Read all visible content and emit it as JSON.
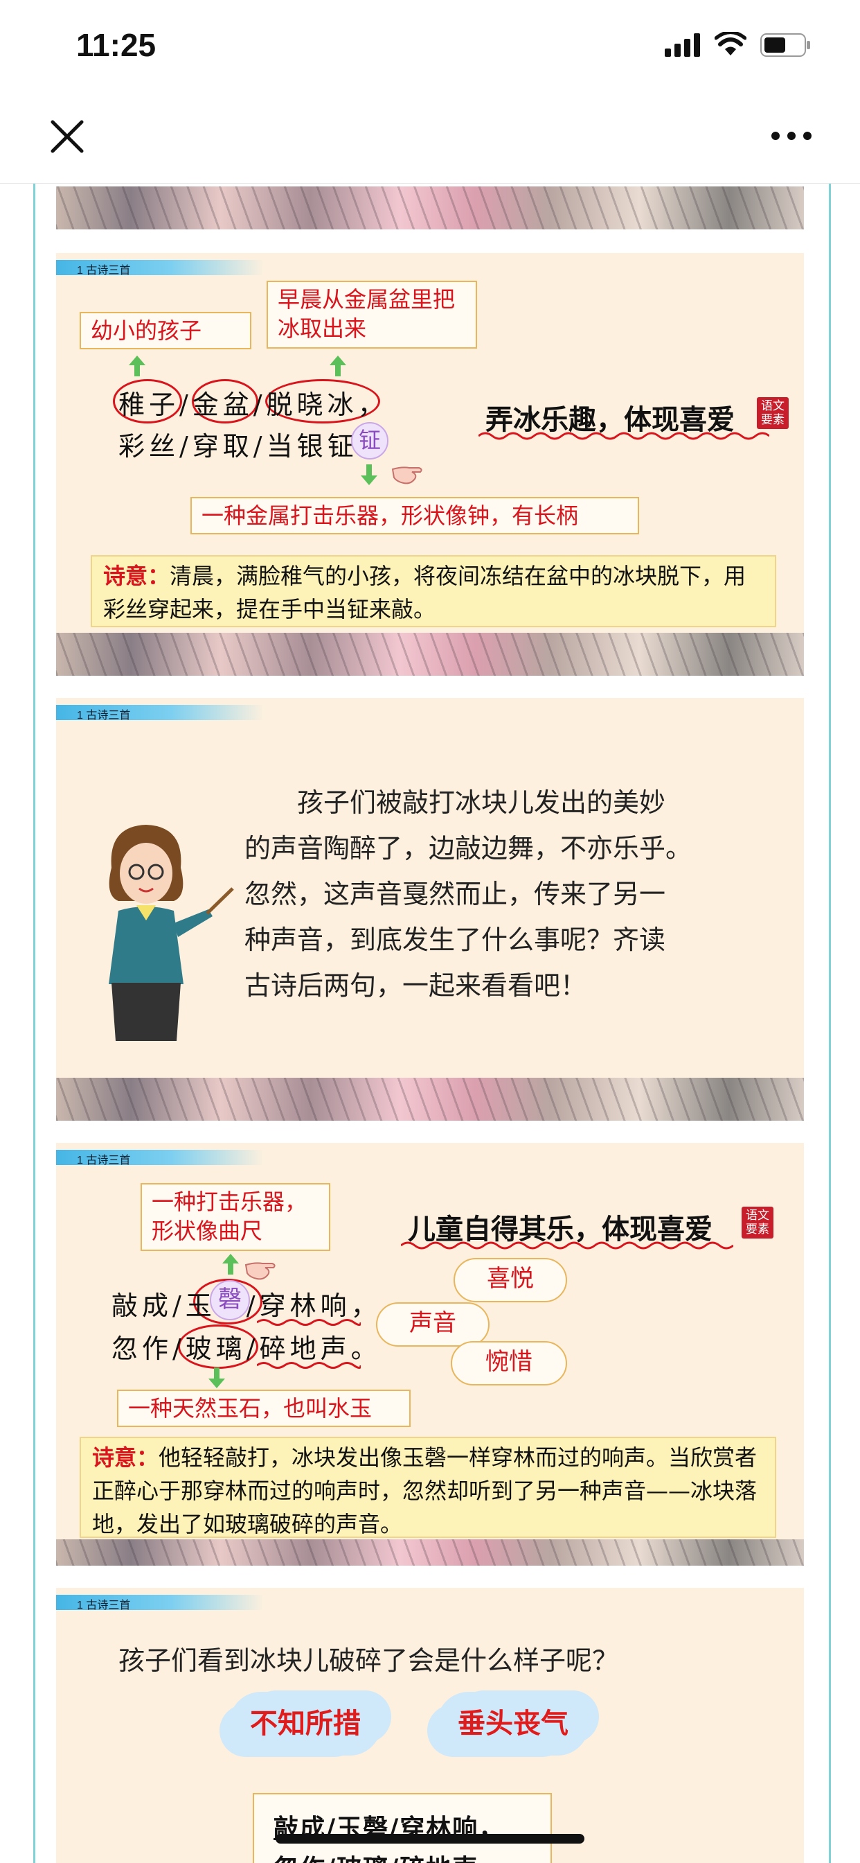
{
  "status": {
    "time": "11:25"
  },
  "slides": [
    {
      "tag": "1 古诗三首",
      "note_left": "幼小的孩子",
      "note_right": "早晨从金属盆里把冰取出来",
      "poem_line1": "稚子/金盆/脱晓冰，",
      "poem_line2": "彩丝/穿取/当银钲。",
      "circled_char": "钲",
      "heading": "弄冰乐趣，体现喜爱",
      "seal": "语文要素",
      "note_bottom": "一种金属打击乐器，形状像钟，有长柄",
      "meaning_label": "诗意：",
      "meaning_text": "清晨，满脸稚气的小孩，将夜间冻结在盆中的冰块脱下，用彩丝穿起来，提在手中当钲来敲。"
    },
    {
      "tag": "1 古诗三首",
      "paragraph": "孩子们被敲打冰块儿发出的美妙的声音陶醉了，边敲边舞，不亦乐乎。忽然，这声音戛然而止，传来了另一种声音，到底发生了什么事呢？齐读古诗后两句，一起来看看吧！",
      "paragraph_lines": [
        "　　孩子们被敲打冰块儿发出的美妙",
        "的声音陶醉了，边敲边舞，不亦乐乎。",
        "忽然，这声音戛然而止，传来了另一",
        "种声音，到底发生了什么事呢？齐读",
        "古诗后两句，一起来看看吧！"
      ]
    },
    {
      "tag": "1 古诗三首",
      "note_top": "一种打击乐器，形状像曲尺",
      "heading": "儿童自得其乐，体现喜爱",
      "seal": "语文要素",
      "poem_line1": "敲成/玉磬/穿林响，",
      "poem_line2": "忽作/玻璃/碎地声。",
      "circled_char": "磬",
      "pill_1": "喜悦",
      "pill_2": "声音",
      "pill_3": "惋惜",
      "note_bottom": "一种天然玉石，也叫水玉",
      "meaning_label": "诗意：",
      "meaning_text": "他轻轻敲打，冰块发出像玉磬一样穿林而过的响声。当欣赏者正醉心于那穿林而过的响声时，忽然却听到了另一种声音——冰块落地，发出了如玻璃破碎的声音。"
    },
    {
      "tag": "1 古诗三首",
      "question": "孩子们看到冰块儿破碎了会是什么样子呢？",
      "cloud_1": "不知所措",
      "cloud_2": "垂头丧气",
      "poem_box_line1": "敲成/玉磬/穿林响，",
      "poem_box_line2": "忽作/玻璃/碎地声。"
    }
  ]
}
